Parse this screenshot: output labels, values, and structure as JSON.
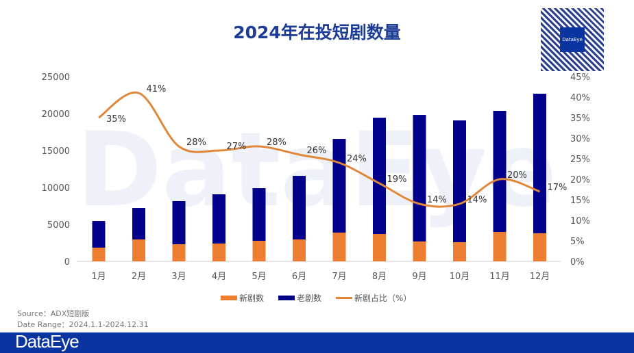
{
  "title": "2024年在投短剧数量",
  "source": "Source：ADX短剧版",
  "date_range": "Date Range：2024.1.1-2024.12.31",
  "logo": "DataEye",
  "qr_label": "DataEye",
  "colors": {
    "new": "#ED7D31",
    "old": "#00008B",
    "ratio": "#E0873A"
  },
  "chart_data": {
    "type": "bar",
    "stacked": true,
    "categories": [
      "1月",
      "2月",
      "3月",
      "4月",
      "5月",
      "6月",
      "7月",
      "8月",
      "9月",
      "10月",
      "11月",
      "12月"
    ],
    "series": [
      {
        "name": "新剧数",
        "values": [
          1850,
          2960,
          2310,
          2400,
          2780,
          2960,
          3890,
          3700,
          2690,
          2590,
          3980,
          3800
        ]
      },
      {
        "name": "老剧数",
        "values": [
          3610,
          4260,
          5840,
          6670,
          7120,
          8610,
          12680,
          15740,
          17120,
          16480,
          16390,
          18890
        ]
      },
      {
        "name": "新剧占比（%）",
        "type": "line",
        "axis": "right",
        "values": [
          35,
          41,
          28,
          27,
          28,
          26,
          24,
          19,
          14,
          14,
          20,
          17
        ],
        "labels": [
          "35%",
          "41%",
          "28%",
          "27%",
          "28%",
          "26%",
          "24%",
          "19%",
          "14%",
          "14%",
          "20%",
          "17%"
        ]
      }
    ],
    "ylim": [
      0,
      25000
    ],
    "yticks": [
      "0",
      "5000",
      "10000",
      "15000",
      "20000",
      "25000"
    ],
    "y2lim": [
      0,
      45
    ],
    "y2ticks": [
      "0%",
      "5%",
      "10%",
      "15%",
      "20%",
      "25%",
      "30%",
      "35%",
      "40%",
      "45%"
    ],
    "grid": false,
    "legend": "bottom"
  }
}
